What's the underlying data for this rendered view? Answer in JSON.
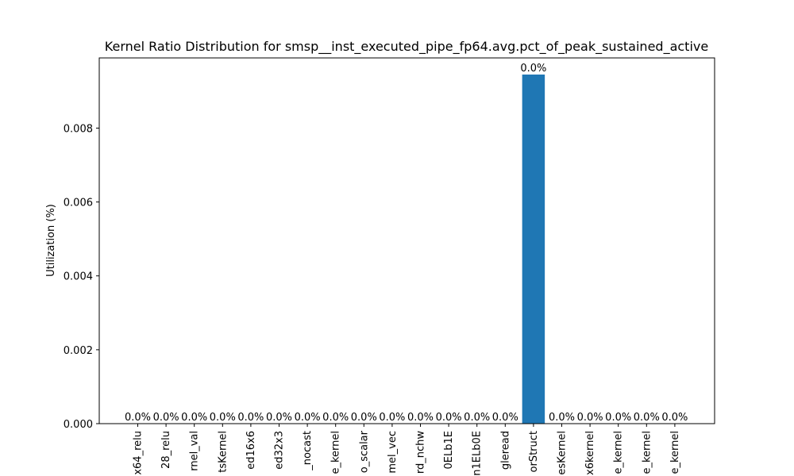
{
  "chart_data": {
    "type": "bar",
    "title": "Kernel Ratio Distribution for smsp__inst_executed_pipe_fp64.avg.pct_of_peak_sustained_active",
    "xlabel": "",
    "ylabel": "Utilization (%)",
    "ylim": [
      0,
      0.0099
    ],
    "yticks": [
      0.0,
      0.002,
      0.004,
      0.006,
      0.008
    ],
    "ytick_labels": [
      "0.000",
      "0.002",
      "0.004",
      "0.006",
      "0.008"
    ],
    "categories": [
      "x64_relu",
      "28_relu",
      "rnel_val",
      "tsKernel",
      "ed16x6",
      "ed32x3",
      "_nocast",
      "e_kernel",
      "o_scalar",
      "mel_vec",
      "rd_nchw",
      "0ELb1E",
      "n1ELb0E",
      "gleread",
      "orStruct",
      "esKernel",
      "x6kernel",
      "e_kernel",
      "e_kernel",
      "e_kernel"
    ],
    "values": [
      0,
      0,
      0,
      0,
      0,
      0,
      0,
      0,
      0,
      0,
      0,
      0,
      0,
      0,
      0.00945,
      0,
      0,
      0,
      0,
      0
    ],
    "data_labels": [
      "0.0%",
      "0.0%",
      "0.0%",
      "0.0%",
      "0.0%",
      "0.0%",
      "0.0%",
      "0.0%",
      "0.0%",
      "0.0%",
      "0.0%",
      "0.0%",
      "0.0%",
      "0.0%",
      "0.0%",
      "0.0%",
      "0.0%",
      "0.0%",
      "0.0%",
      "0.0%"
    ],
    "bar_color": "#1f77b4",
    "grid": false,
    "legend": "none"
  }
}
